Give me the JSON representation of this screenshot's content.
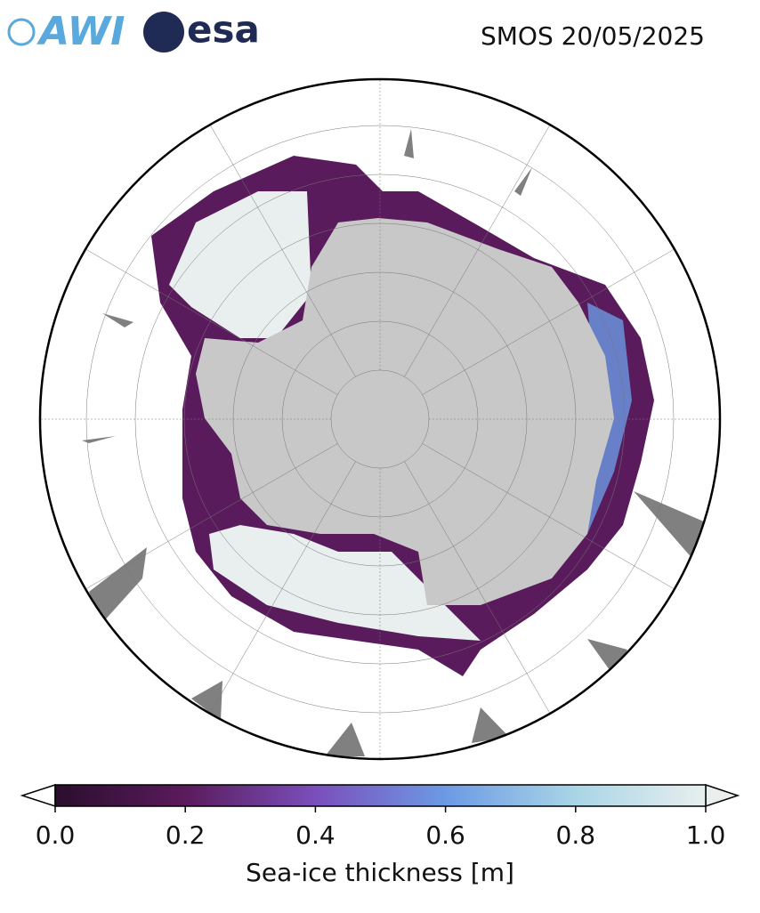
{
  "header": {
    "logos": [
      "AWI",
      "esa"
    ],
    "title": "SMOS 20/05/2025"
  },
  "colorbar": {
    "label": "Sea-ice thickness [m]",
    "lim": [
      0,
      1
    ],
    "ticks": [
      {
        "value": 0,
        "label": "0.0"
      },
      {
        "value": 0.2,
        "label": "0.2"
      },
      {
        "value": 0.4,
        "label": "0.4"
      },
      {
        "value": 0.6,
        "label": "0.6"
      },
      {
        "value": 0.8,
        "label": "0.8"
      },
      {
        "value": 1,
        "label": "1.0"
      }
    ],
    "colors": [
      "#2a0e2c",
      "#5a1b5c",
      "#7a4fbb",
      "#6c9ae4",
      "#a9d5e6",
      "#e8efee"
    ]
  }
}
